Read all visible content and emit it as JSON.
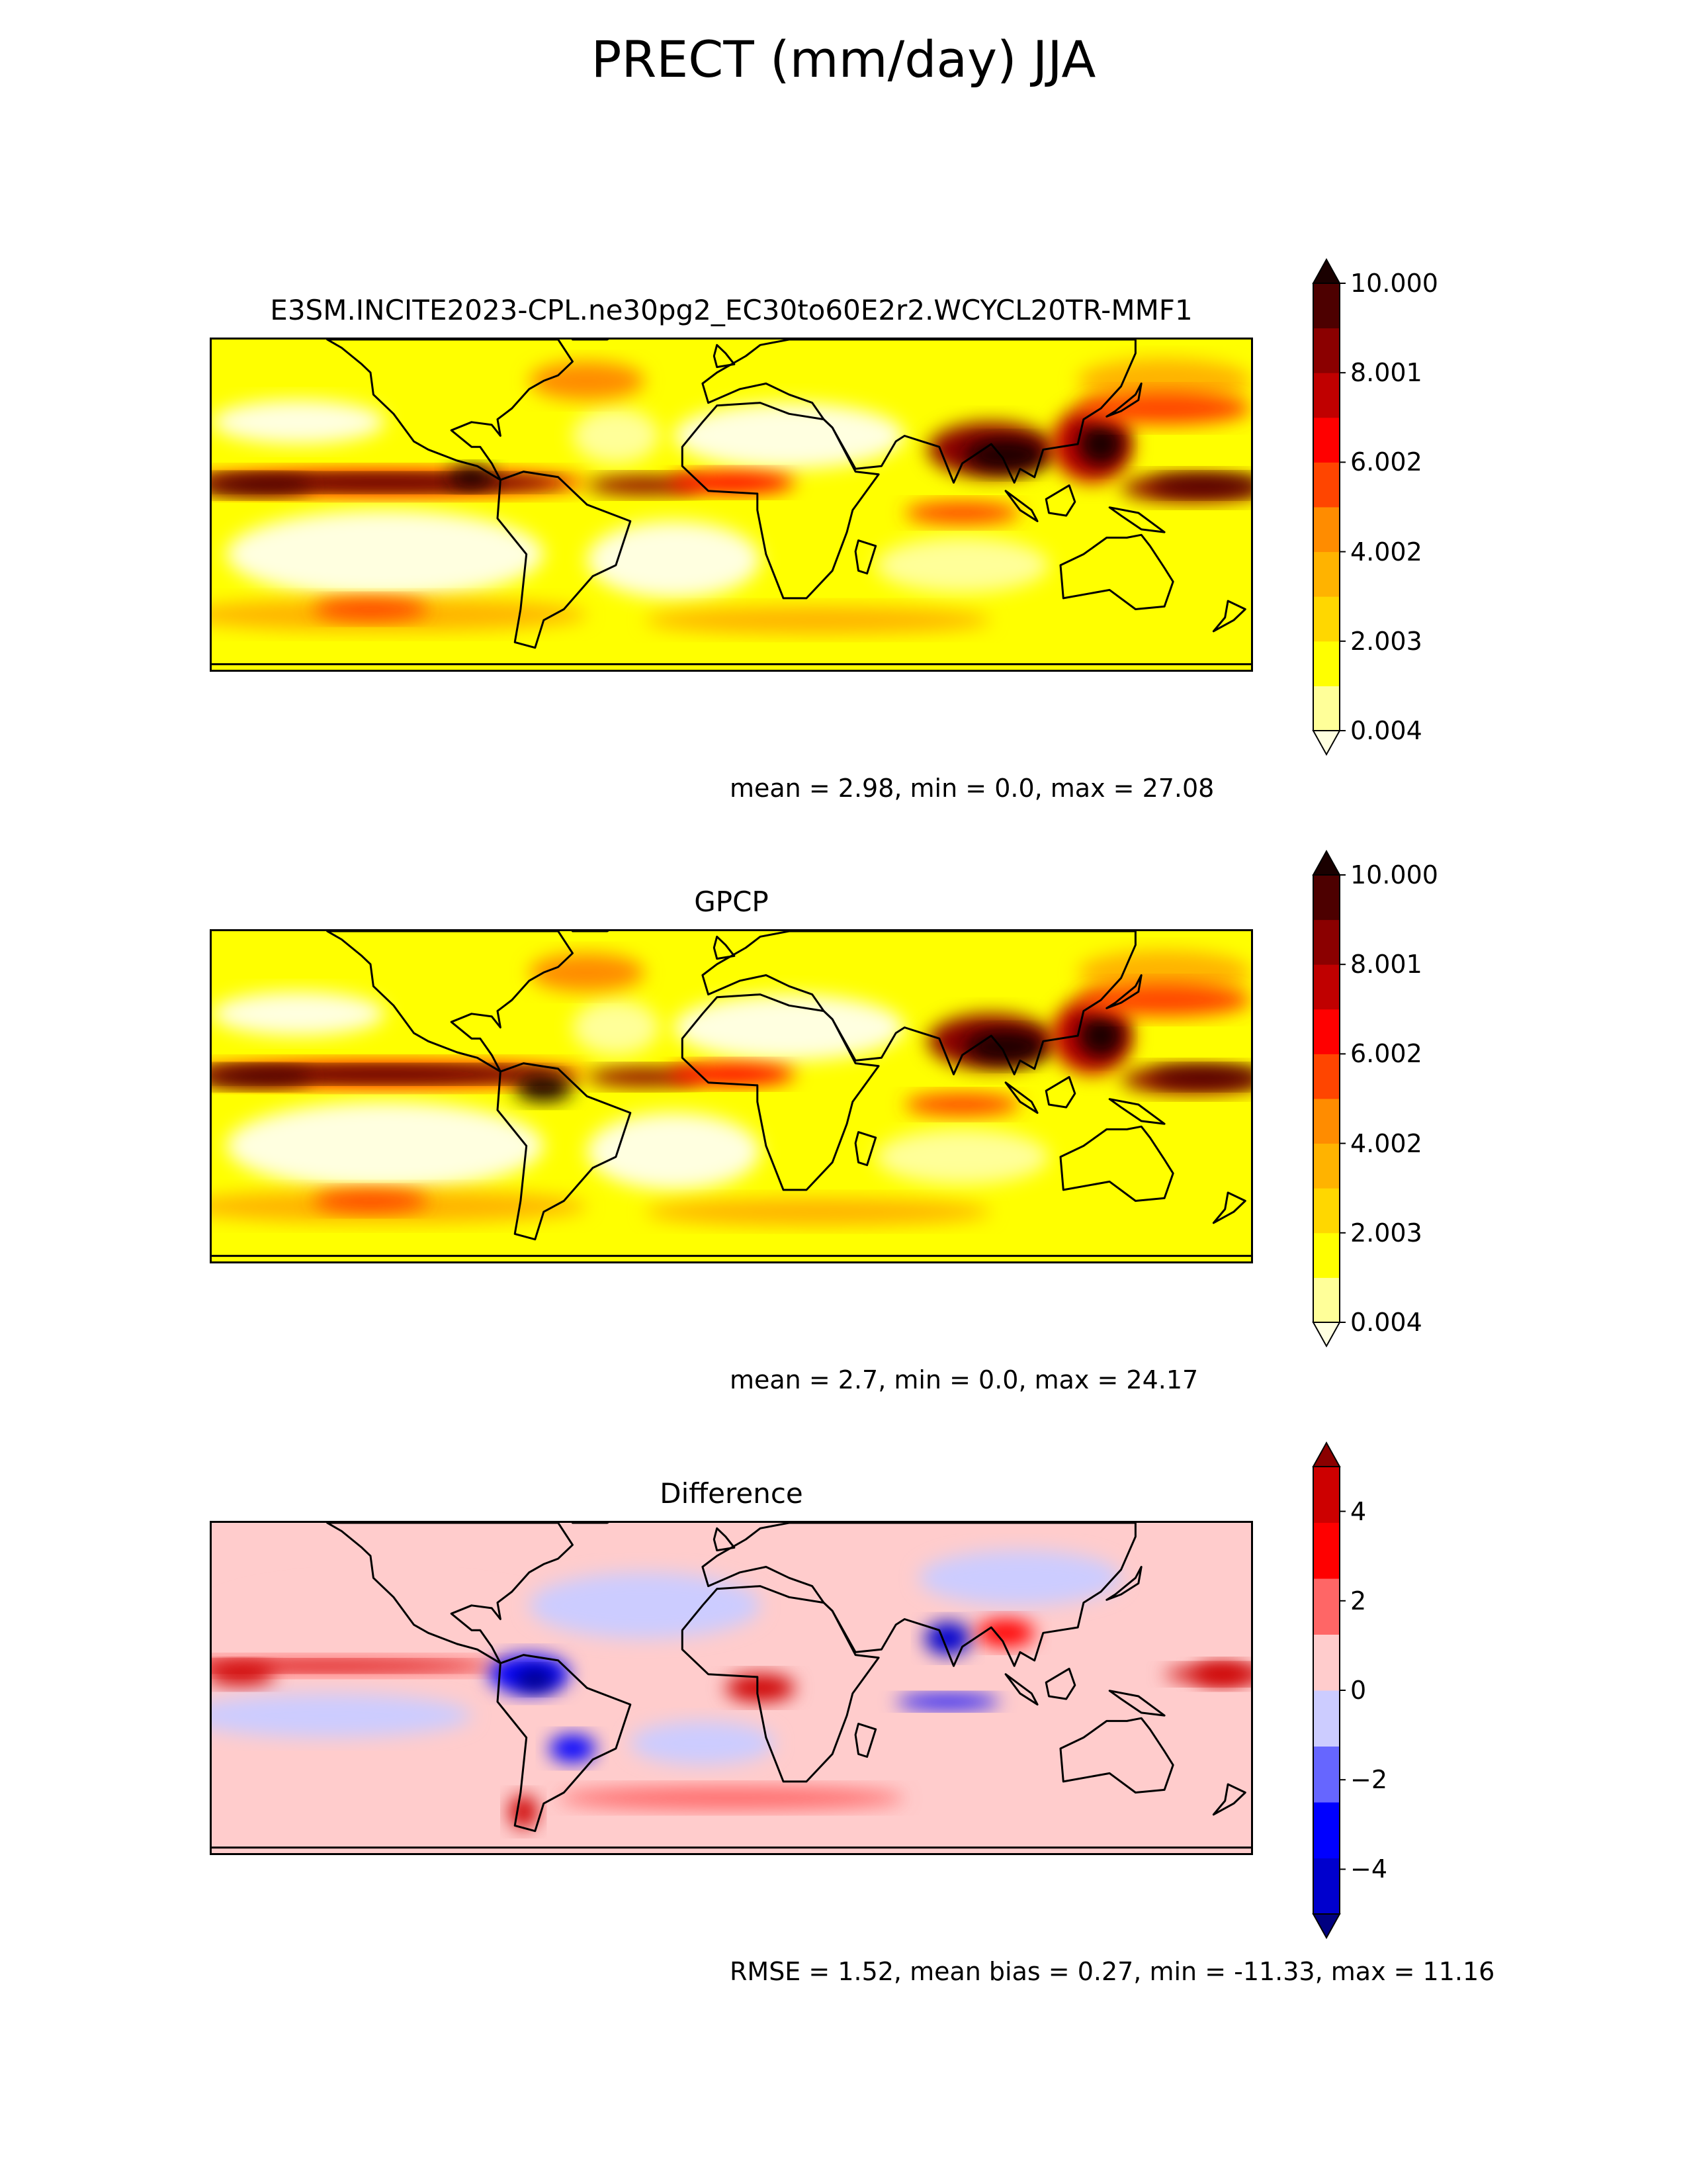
{
  "title": "PRECT (mm/day) JJA",
  "chart_data": [
    {
      "type": "heatmap",
      "title": "E3SM.INCITE2023-CPL.ne30pg2_EC30to60E2r2.WCYCL20TR-MMF1",
      "stats_text": "mean = 2.98, min = 0.0, max = 27.08",
      "colorbar": {
        "min": 0.004,
        "max": 10.0,
        "ticks": [
          "10.000",
          "8.001",
          "6.002",
          "4.002",
          "2.003",
          "0.004"
        ],
        "levels": [
          "#ffffe0",
          "#ffff99",
          "#ffff00",
          "#ffd700",
          "#ffb300",
          "#ff8c00",
          "#ff4500",
          "#ff0000",
          "#c00000",
          "#8b0000",
          "#4d0000",
          "#1a0000"
        ],
        "extend": "both"
      },
      "features": [
        {
          "kind": "itcz",
          "lon_start": -180,
          "lon_end": 180,
          "lat": 8,
          "intensity": 9
        },
        {
          "kind": "monsoon",
          "region": "South Asia",
          "intensity": 10
        },
        {
          "kind": "storm_track",
          "region": "Southern Ocean",
          "intensity": 5
        }
      ]
    },
    {
      "type": "heatmap",
      "title": "GPCP",
      "stats_text": "mean = 2.7, min = 0.0, max = 24.17",
      "colorbar": {
        "min": 0.004,
        "max": 10.0,
        "ticks": [
          "10.000",
          "8.001",
          "6.002",
          "4.002",
          "2.003",
          "0.004"
        ],
        "levels": [
          "#ffffe0",
          "#ffff99",
          "#ffff00",
          "#ffd700",
          "#ffb300",
          "#ff8c00",
          "#ff4500",
          "#ff0000",
          "#c00000",
          "#8b0000",
          "#4d0000",
          "#1a0000"
        ],
        "extend": "both"
      },
      "features": [
        {
          "kind": "itcz",
          "lon_start": -180,
          "lon_end": 180,
          "lat": 8,
          "intensity": 8
        },
        {
          "kind": "monsoon",
          "region": "Bay of Bengal",
          "intensity": 10
        },
        {
          "kind": "storm_track",
          "region": "Southern Ocean",
          "intensity": 4
        }
      ]
    },
    {
      "type": "heatmap",
      "title": "Difference",
      "stats_text": "RMSE = 1.52, mean bias = 0.27, min = -11.33, max = 11.16",
      "colorbar": {
        "min": -5,
        "max": 5,
        "ticks": [
          "4",
          "2",
          "0",
          "−2",
          "−4"
        ],
        "levels": [
          "#000080",
          "#0000cd",
          "#0000ff",
          "#6666ff",
          "#ccccff",
          "#ffcccc",
          "#ff6666",
          "#ff0000",
          "#cd0000",
          "#8b0000"
        ],
        "extend": "both"
      }
    }
  ]
}
